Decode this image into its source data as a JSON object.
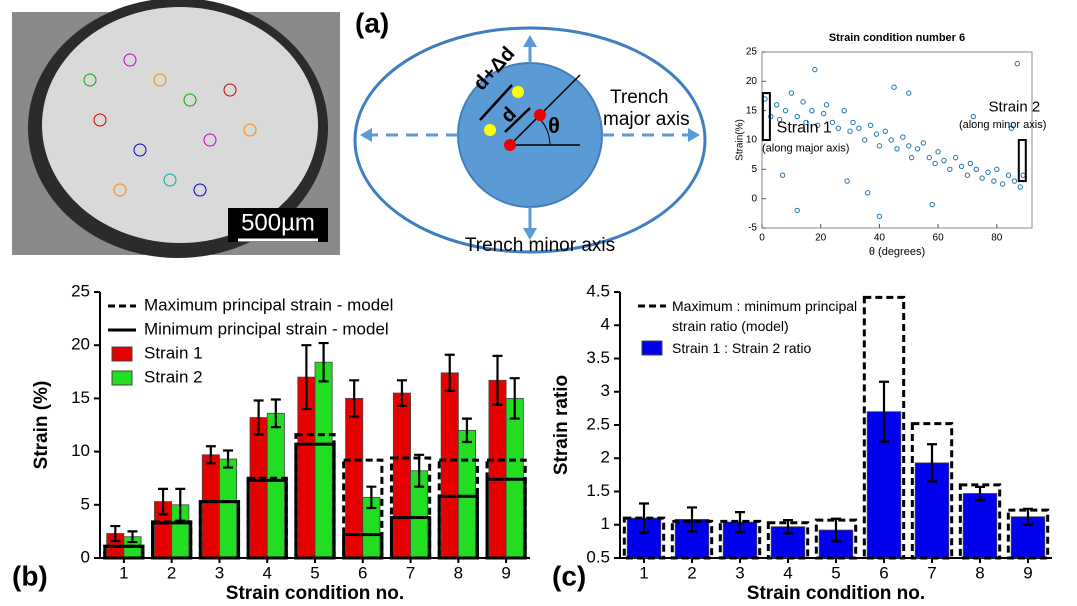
{
  "panel_labels": [
    "(a)",
    "(b)",
    "(c)"
  ],
  "image": {
    "scale_bar": "500µm"
  },
  "diagram": {
    "d_plus": "d+Δd",
    "d": "d",
    "theta": "θ",
    "major_axis": [
      "Trench",
      "major axis"
    ],
    "minor_axis": "Trench minor axis"
  },
  "chart_data": [
    {
      "type": "scatter",
      "title": "Strain condition number 6",
      "x_label": "θ (degrees)",
      "y_label": "Strain(%)",
      "color": "#1f77b4",
      "annotations": [
        "Strain 1",
        "(along major axis)",
        "Strain 2",
        "(along minor axis)"
      ],
      "xlim": [
        0,
        92
      ],
      "xticks": [
        0,
        20,
        40,
        60,
        80
      ],
      "ylim": [
        -5,
        25
      ],
      "yticks": [
        -5,
        0,
        5,
        10,
        15,
        20,
        25
      ],
      "x": [
        1,
        3,
        5,
        6,
        8,
        10,
        12,
        14,
        15,
        17,
        19,
        21,
        22,
        24,
        26,
        28,
        30,
        31,
        33,
        35,
        37,
        39,
        40,
        42,
        44,
        46,
        48,
        50,
        51,
        53,
        55,
        57,
        59,
        60,
        62,
        64,
        66,
        68,
        70,
        71,
        73,
        75,
        77,
        79,
        80,
        82,
        84,
        86,
        88,
        89,
        7,
        18,
        29,
        45,
        58,
        72,
        85,
        36,
        50,
        12,
        87,
        40
      ],
      "y": [
        17,
        14,
        16,
        13.5,
        15,
        18,
        14,
        16.5,
        13,
        15,
        12.5,
        14.5,
        16,
        13,
        12,
        15,
        11.5,
        13,
        12,
        10,
        12.5,
        11,
        9,
        11.5,
        10,
        8.5,
        10.5,
        9,
        7,
        8.5,
        9.5,
        7,
        6,
        8,
        6.5,
        5,
        7,
        5.5,
        4,
        6,
        5,
        3.5,
        4.5,
        3,
        5,
        2.5,
        4,
        3,
        2,
        4,
        4,
        22,
        3,
        19,
        -1,
        14,
        12,
        1,
        18,
        -2,
        23,
        -3
      ]
    },
    {
      "type": "bar",
      "x_label": "Strain condition no.",
      "y_label": "Strain (%)",
      "categories": [
        "1",
        "2",
        "3",
        "4",
        "5",
        "6",
        "7",
        "8",
        "9"
      ],
      "ylim": [
        0,
        25
      ],
      "yticks": [
        0,
        5,
        10,
        15,
        20,
        25
      ],
      "series": [
        {
          "name": "Maximum principal strain - model",
          "kind": "outline",
          "line_style": "dashed",
          "color": "#000000",
          "values": [
            1.1,
            3.4,
            5.3,
            7.5,
            11.6,
            9.2,
            9.4,
            9.2,
            9.2
          ]
        },
        {
          "name": "Minimum principal strain - model",
          "kind": "outline",
          "line_style": "solid",
          "color": "#000000",
          "values": [
            1.1,
            3.3,
            5.3,
            7.3,
            10.7,
            2.2,
            3.8,
            5.8,
            7.4
          ]
        },
        {
          "name": "Strain 1",
          "kind": "bar",
          "color": "#e60000",
          "values": [
            2.3,
            5.3,
            9.7,
            13.2,
            17,
            15,
            15.5,
            17.4,
            16.7
          ],
          "errors": [
            0.7,
            1.2,
            0.8,
            1.6,
            3,
            1.7,
            1.2,
            1.7,
            2.3
          ]
        },
        {
          "name": "Strain 2",
          "kind": "bar",
          "color": "#22dd22",
          "values": [
            2,
            5,
            9.3,
            13.6,
            18.4,
            5.7,
            8.2,
            12,
            15
          ],
          "errors": [
            0.5,
            1.5,
            0.8,
            1.3,
            1.8,
            1,
            1.5,
            1.1,
            1.9
          ]
        }
      ]
    },
    {
      "type": "bar",
      "x_label": "Strain condition no.",
      "y_label": "Strain ratio",
      "categories": [
        "1",
        "2",
        "3",
        "4",
        "5",
        "6",
        "7",
        "8",
        "9"
      ],
      "ylim": [
        0.5,
        4.5
      ],
      "yticks": [
        0.5,
        1,
        1.5,
        2,
        2.5,
        3,
        3.5,
        4,
        4.5
      ],
      "series": [
        {
          "name": "Maximum : minimum principal strain ratio (model)",
          "kind": "outline",
          "line_style": "dashed",
          "color": "#000000",
          "values": [
            1.1,
            1.05,
            1.05,
            1.03,
            1.07,
            4.42,
            2.52,
            1.6,
            1.22
          ]
        },
        {
          "name": "Strain 1 : Strain 2 ratio",
          "kind": "bar",
          "color": "#0000ee",
          "values": [
            1.1,
            1.08,
            1.04,
            0.97,
            0.92,
            2.7,
            1.93,
            1.47,
            1.12
          ],
          "errors": [
            0.22,
            0.18,
            0.15,
            0.1,
            0.17,
            0.45,
            0.28,
            0.1,
            0.12
          ]
        }
      ]
    }
  ]
}
